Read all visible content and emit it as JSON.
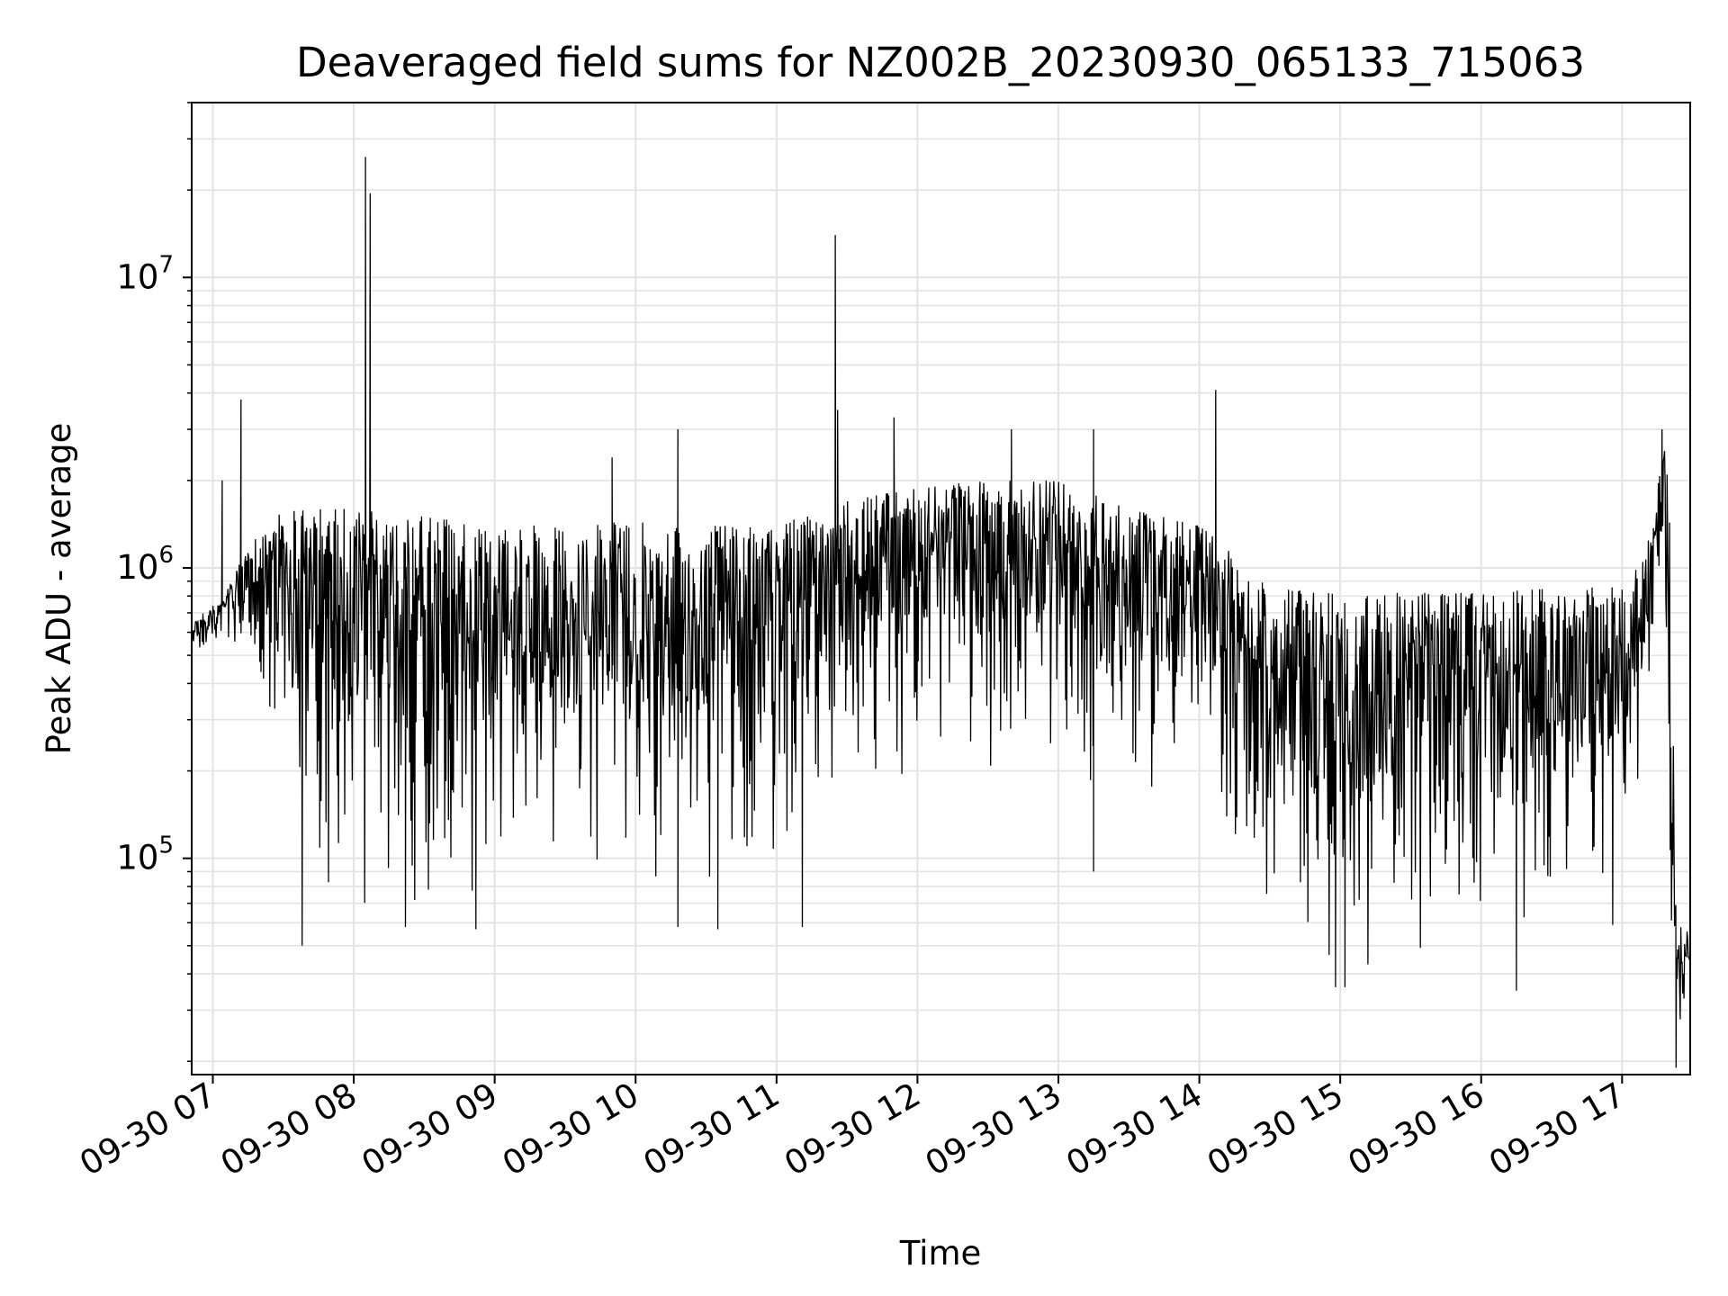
{
  "chart_data": {
    "type": "line",
    "title": "Deaveraged field sums for NZ002B_20230930_065133_715063",
    "xlabel": "Time",
    "ylabel": "Peak ADU - average",
    "yscale": "log",
    "ylim": [
      18000,
      40000000
    ],
    "xlim": [
      "09-30 06:51",
      "09-30 17:29"
    ],
    "grid": true,
    "line_color": "#000000",
    "x_ticks": [
      "09-30 07",
      "09-30 08",
      "09-30 09",
      "09-30 10",
      "09-30 11",
      "09-30 12",
      "09-30 13",
      "09-30 14",
      "09-30 15",
      "09-30 16",
      "09-30 17"
    ],
    "y_ticks": [
      {
        "base": "10",
        "exp": "5",
        "value": 100000
      },
      {
        "base": "10",
        "exp": "6",
        "value": 1000000
      },
      {
        "base": "10",
        "exp": "7",
        "value": 10000000
      }
    ],
    "envelope": {
      "x": [
        "09-30 06:51",
        "09-30 07:05",
        "09-30 07:15",
        "09-30 07:25",
        "09-30 07:35",
        "09-30 08:00",
        "09-30 08:30",
        "09-30 09:00",
        "09-30 09:30",
        "09-30 10:00",
        "09-30 10:30",
        "09-30 11:00",
        "09-30 11:30",
        "09-30 12:00",
        "09-30 12:30",
        "09-30 13:00",
        "09-30 13:30",
        "09-30 14:00",
        "09-30 14:05",
        "09-30 14:30",
        "09-30 15:00",
        "09-30 15:30",
        "09-30 16:00",
        "09-30 16:30",
        "09-30 17:00",
        "09-30 17:10",
        "09-30 17:15",
        "09-30 17:17",
        "09-30 17:20",
        "09-30 17:23",
        "09-30 17:29"
      ],
      "high": [
        650000,
        800000,
        1200000,
        1500000,
        1600000,
        1600000,
        1500000,
        1400000,
        1400000,
        1450000,
        1400000,
        1400000,
        1700000,
        1900000,
        2000000,
        2000000,
        1600000,
        1400000,
        1300000,
        850000,
        820000,
        820000,
        820000,
        850000,
        900000,
        1200000,
        1800000,
        2800000,
        2400000,
        60000,
        55000
      ],
      "low": [
        450000,
        550000,
        350000,
        150000,
        65000,
        60000,
        62000,
        68000,
        70000,
        70000,
        75000,
        80000,
        150000,
        200000,
        190000,
        180000,
        150000,
        170000,
        140000,
        45000,
        40000,
        42000,
        45000,
        48000,
        52000,
        250000,
        500000,
        900000,
        40000,
        20000,
        35000
      ]
    },
    "spikes": [
      {
        "x": "09-30 07:04",
        "y": 2000000
      },
      {
        "x": "09-30 07:12",
        "y": 3800000
      },
      {
        "x": "09-30 08:05",
        "y": 26000000
      },
      {
        "x": "09-30 08:07",
        "y": 19500000
      },
      {
        "x": "09-30 09:50",
        "y": 2400000
      },
      {
        "x": "09-30 10:18",
        "y": 3000000
      },
      {
        "x": "09-30 11:25",
        "y": 14000000
      },
      {
        "x": "09-30 11:26",
        "y": 3500000
      },
      {
        "x": "09-30 11:50",
        "y": 3300000
      },
      {
        "x": "09-30 12:40",
        "y": 3000000
      },
      {
        "x": "09-30 13:15",
        "y": 3000000
      },
      {
        "x": "09-30 14:07",
        "y": 4100000
      },
      {
        "x": "09-30 17:17",
        "y": 3000000
      }
    ],
    "dips": [
      {
        "x": "09-30 07:38",
        "y": 50000
      },
      {
        "x": "09-30 08:22",
        "y": 58000
      },
      {
        "x": "09-30 08:52",
        "y": 57000
      },
      {
        "x": "09-30 10:18",
        "y": 58000
      },
      {
        "x": "09-30 10:35",
        "y": 57000
      },
      {
        "x": "09-30 11:11",
        "y": 58000
      },
      {
        "x": "09-30 13:15",
        "y": 90000
      },
      {
        "x": "09-30 14:58",
        "y": 36000
      },
      {
        "x": "09-30 15:02",
        "y": 36000
      },
      {
        "x": "09-30 16:15",
        "y": 35000
      },
      {
        "x": "09-30 17:23",
        "y": 19000
      }
    ]
  }
}
